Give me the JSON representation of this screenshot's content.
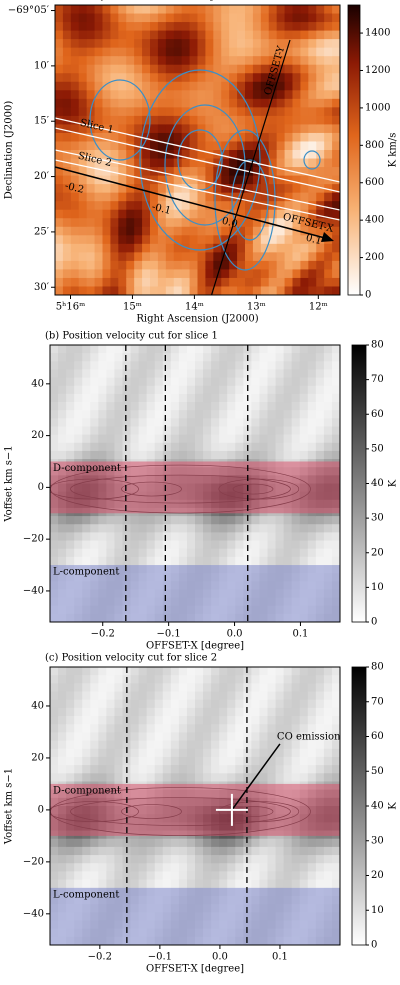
{
  "chart_data": [
    {
      "type": "heatmap",
      "title": "(a) Overlay of the L- and D-component",
      "xlabel": "Right Ascension (J2000)",
      "ylabel": "Declination (J2000)",
      "xlim": [
        16.25,
        11.65
      ],
      "xticks": [
        {
          "value": 16,
          "label": "5ʰ16ᵐ"
        },
        {
          "value": 15,
          "label": "15ᵐ"
        },
        {
          "value": 14,
          "label": "14ᵐ"
        },
        {
          "value": 13,
          "label": "13ᵐ"
        },
        {
          "value": 12,
          "label": "12ᵐ"
        }
      ],
      "ylim": [
        30.7,
        4.5
      ],
      "yticks": [
        {
          "value": 5,
          "label": "−69°05′"
        },
        {
          "value": 10,
          "label": "10′"
        },
        {
          "value": 15,
          "label": "15′"
        },
        {
          "value": 20,
          "label": "20′"
        },
        {
          "value": 25,
          "label": "25′"
        },
        {
          "value": 30,
          "label": "30′"
        }
      ],
      "colorbar": {
        "label": "K km/s",
        "lim": [
          0,
          1550
        ],
        "ticks": [
          0,
          200,
          400,
          600,
          800,
          1000,
          1200,
          1400
        ]
      },
      "annotations": {
        "slices": [
          "Slice 1",
          "Slice 2"
        ],
        "axes": [
          "OFFSET-X",
          "OFFSET-Y"
        ],
        "offset_labels": [
          "-0.2",
          "-0.1",
          "0.0",
          "0.1"
        ]
      }
    },
    {
      "type": "heatmap",
      "title": "(b) Position velocity cut for slice 1",
      "xlabel": "OFFSET-X [degree]",
      "ylabel": "Voffset km s−1",
      "xlim": [
        -0.28,
        0.16
      ],
      "xticks": [
        {
          "value": -0.2,
          "label": "−0.2"
        },
        {
          "value": -0.1,
          "label": "−0.1"
        },
        {
          "value": 0,
          "label": "0.0"
        },
        {
          "value": 0.1,
          "label": "0.1"
        }
      ],
      "ylim": [
        -52,
        55
      ],
      "yticks": [
        {
          "value": -40,
          "label": "−40"
        },
        {
          "value": -20,
          "label": "−20"
        },
        0,
        20,
        40
      ],
      "vlines": [
        -0.165,
        -0.105,
        0.02
      ],
      "bands": [
        {
          "name": "D-component",
          "color": "#d9546e",
          "ylim": [
            -10,
            10
          ]
        },
        {
          "name": "L-component",
          "color": "#8088cc",
          "ylim": [
            -52,
            -30
          ]
        }
      ],
      "colorbar": {
        "label": "K",
        "lim": [
          0,
          80
        ],
        "ticks": [
          0,
          10,
          20,
          30,
          40,
          50,
          60,
          70,
          80
        ]
      }
    },
    {
      "type": "heatmap",
      "title": "(c) Position velocity cut for slice 2",
      "xlabel": "OFFSET-X [degree]",
      "ylabel": "Voffset km s−1",
      "xlim": [
        -0.283,
        0.2
      ],
      "xticks": [
        {
          "value": -0.2,
          "label": "−0.2"
        },
        {
          "value": -0.1,
          "label": "−0.1"
        },
        {
          "value": 0,
          "label": "0.0"
        },
        {
          "value": 0.1,
          "label": "0.1"
        }
      ],
      "ylim": [
        -52,
        55
      ],
      "yticks": [
        {
          "value": -40,
          "label": "−40"
        },
        {
          "value": -20,
          "label": "−20"
        },
        0,
        20,
        40
      ],
      "vlines": [
        -0.155,
        0.045
      ],
      "bands": [
        {
          "name": "D-component",
          "color": "#d9546e",
          "ylim": [
            -10,
            10
          ]
        },
        {
          "name": "L-component",
          "color": "#8088cc",
          "ylim": [
            -52,
            -30
          ]
        }
      ],
      "marker": {
        "label": "CO emission",
        "x": 0.02,
        "y": 0
      },
      "colorbar": {
        "label": "K",
        "lim": [
          0,
          80
        ],
        "ticks": [
          0,
          10,
          20,
          30,
          40,
          50,
          60,
          70,
          80
        ]
      }
    }
  ]
}
